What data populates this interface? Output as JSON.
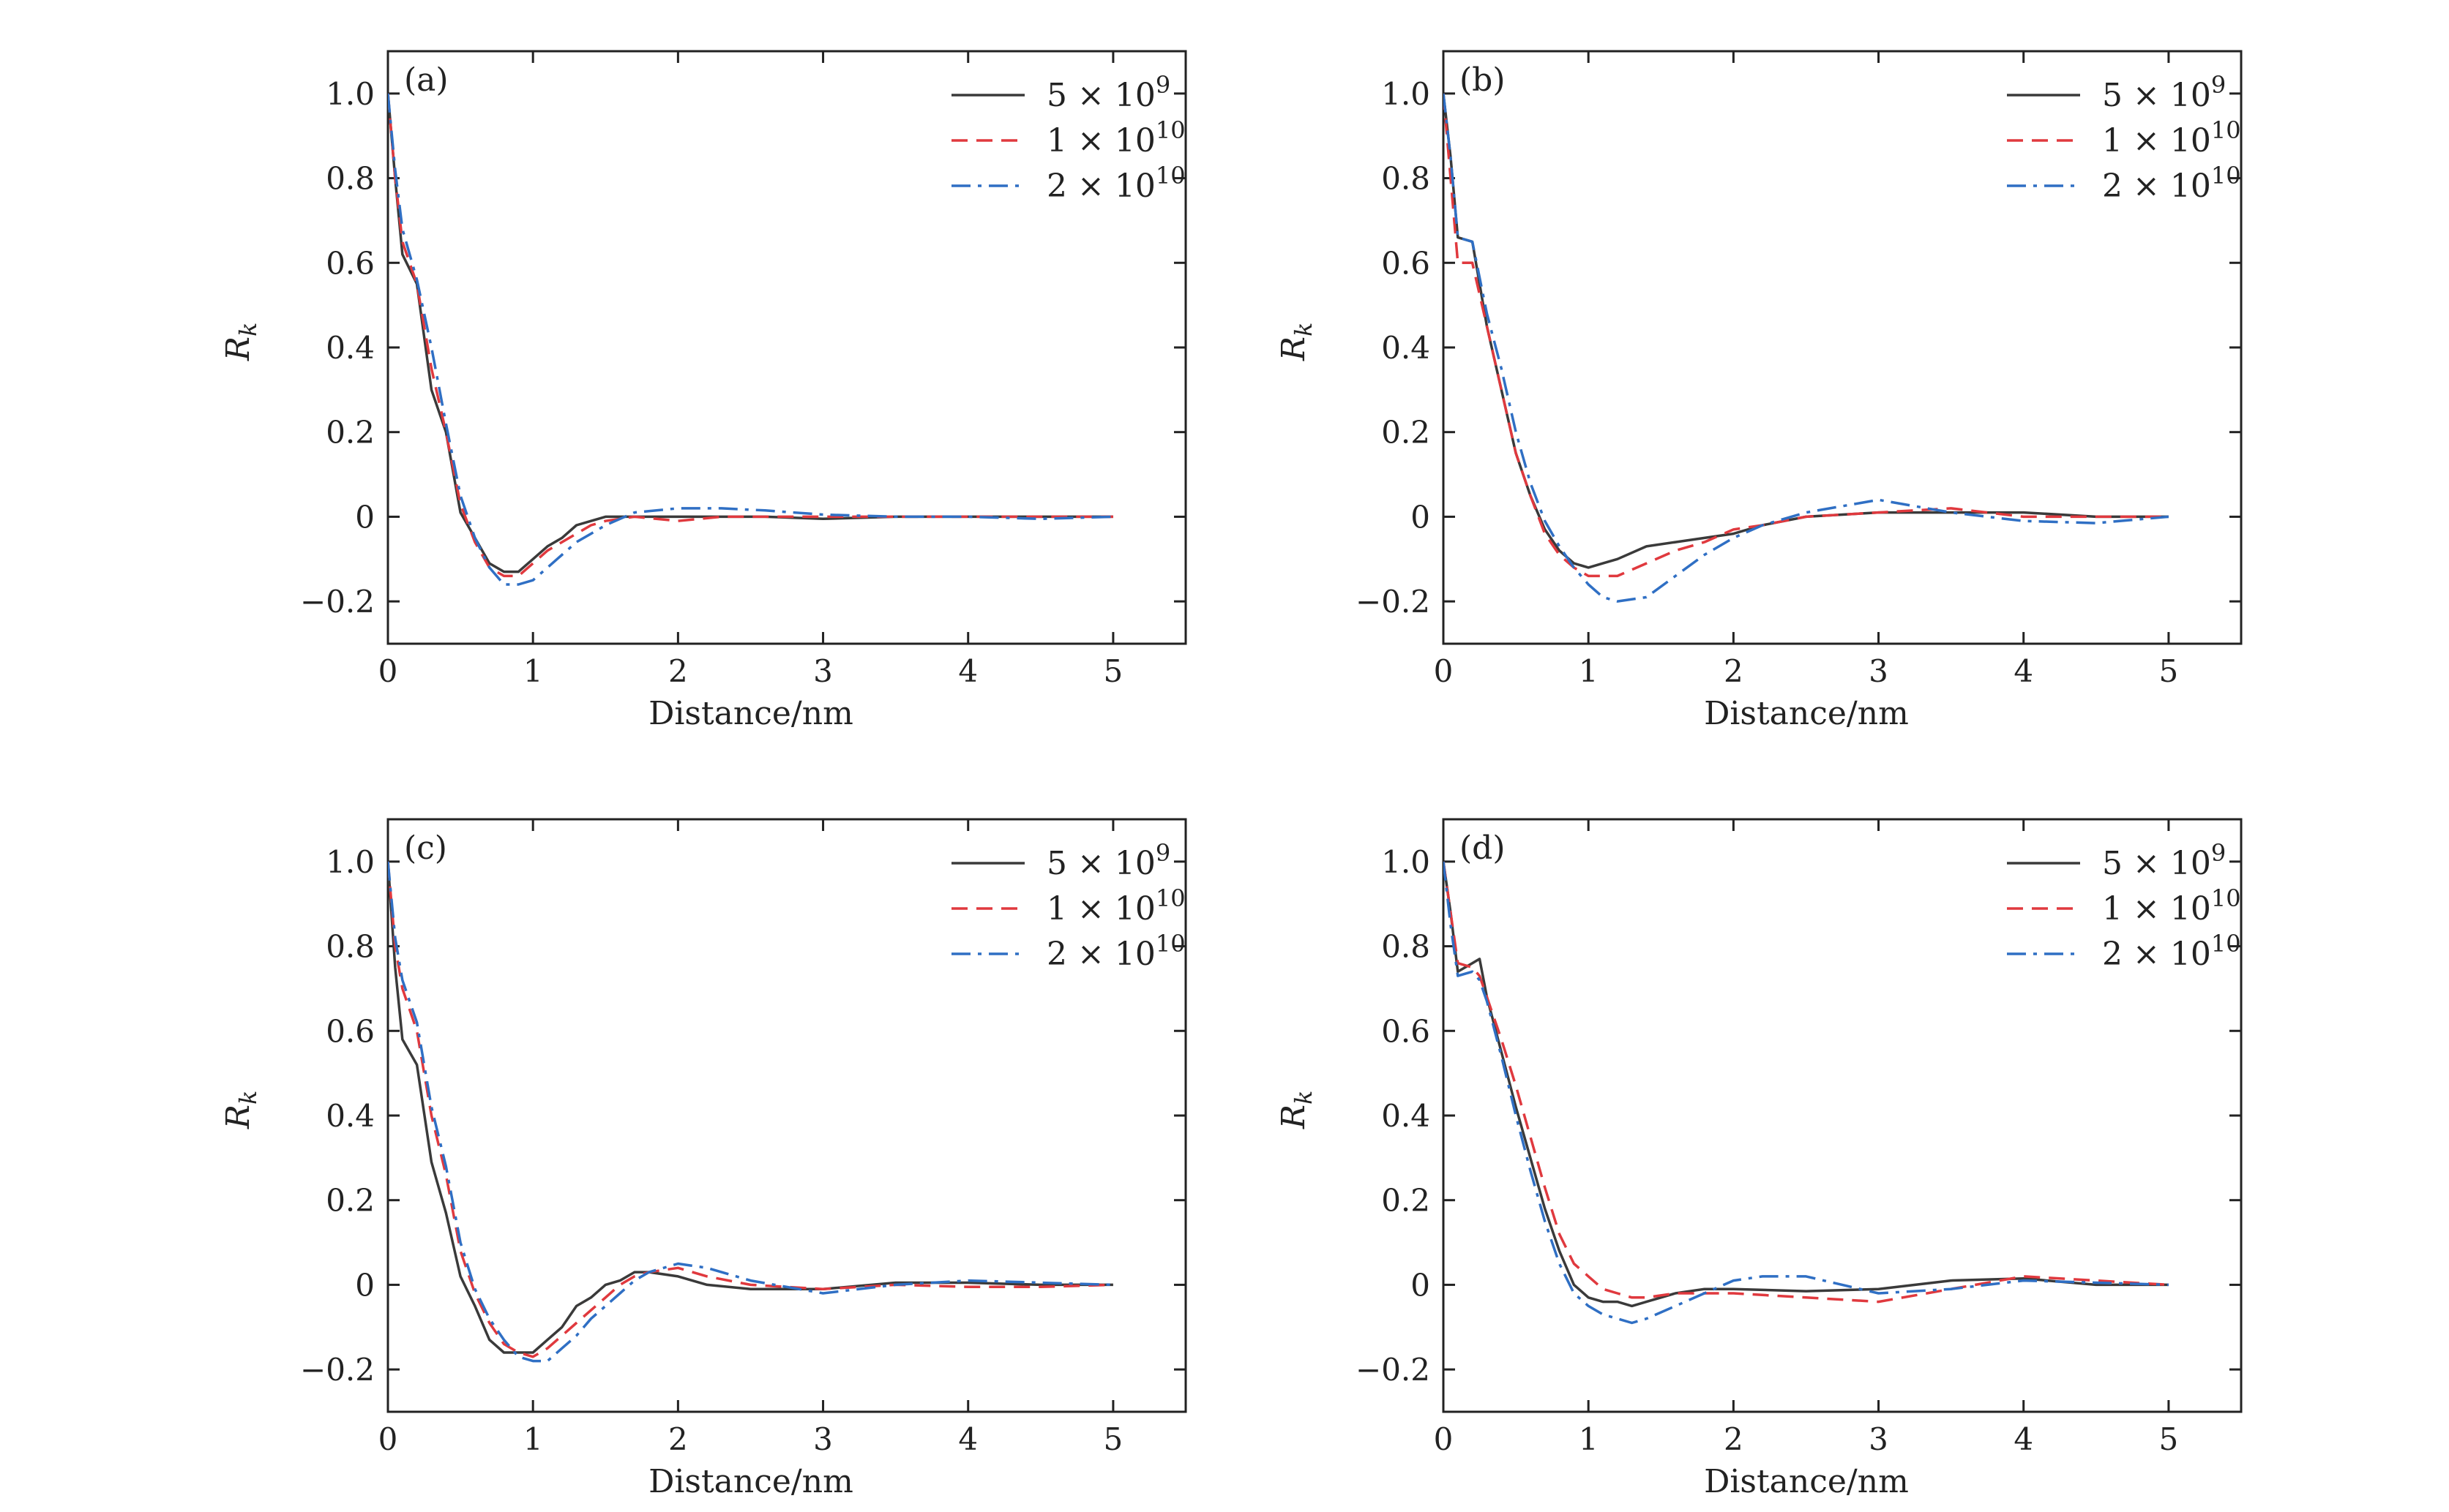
{
  "figure": {
    "columns": 2,
    "rows": 2
  },
  "legend_labels": [
    {
      "base": "5 × 10",
      "exp": "9"
    },
    {
      "base": "1 × 10",
      "exp": "10"
    },
    {
      "base": "2 × 10",
      "exp": "10"
    }
  ],
  "colors": {
    "s5e9": "#3a3a3a",
    "s1e10": "#e0393e",
    "s2e10": "#2f6fc4",
    "axis": "#222222"
  },
  "chart_data": [
    {
      "type": "line",
      "panel_label": "(a)",
      "xlabel": "Distance/nm",
      "ylabel": "R",
      "ylabel_sub": "k",
      "xlim": [
        0,
        5.5
      ],
      "ylim": [
        -0.3,
        1.1
      ],
      "xticks": [
        0,
        1,
        2,
        3,
        4,
        5
      ],
      "yticks": [
        -0.2,
        0,
        0.2,
        0.4,
        0.6,
        0.8,
        1.0
      ],
      "ytick_labels": [
        "−0.2",
        "0",
        "0.2",
        "0.4",
        "0.6",
        "0.8",
        "1.0"
      ],
      "legend_position": "top-right",
      "series": [
        {
          "name": "5×10^9",
          "color_key": "s5e9",
          "dash": "solid",
          "x": [
            0,
            0.05,
            0.1,
            0.2,
            0.3,
            0.4,
            0.5,
            0.6,
            0.7,
            0.8,
            0.9,
            1.0,
            1.1,
            1.2,
            1.3,
            1.4,
            1.5,
            1.7,
            2.0,
            2.3,
            2.6,
            3.0,
            3.5,
            4.0,
            4.5,
            5.0
          ],
          "y": [
            1.0,
            0.8,
            0.62,
            0.55,
            0.3,
            0.2,
            0.01,
            -0.05,
            -0.11,
            -0.13,
            -0.13,
            -0.1,
            -0.07,
            -0.05,
            -0.02,
            -0.01,
            0.0,
            0.0,
            0.0,
            0.0,
            0.0,
            -0.005,
            0.0,
            0.0,
            0.0,
            0.0
          ]
        },
        {
          "name": "1×10^10",
          "color_key": "s1e10",
          "dash": "dashed",
          "x": [
            0,
            0.05,
            0.1,
            0.2,
            0.3,
            0.4,
            0.5,
            0.6,
            0.7,
            0.8,
            0.9,
            1.0,
            1.1,
            1.2,
            1.3,
            1.4,
            1.5,
            1.7,
            2.0,
            2.3,
            2.6,
            3.0,
            3.5,
            4.0,
            4.5,
            5.0
          ],
          "y": [
            1.0,
            0.8,
            0.65,
            0.55,
            0.35,
            0.2,
            0.03,
            -0.06,
            -0.12,
            -0.14,
            -0.14,
            -0.11,
            -0.08,
            -0.06,
            -0.04,
            -0.02,
            -0.01,
            0.0,
            -0.01,
            0.0,
            0.0,
            0.0,
            0.0,
            0.0,
            0.0,
            0.0
          ]
        },
        {
          "name": "2×10^10",
          "color_key": "s2e10",
          "dash": "dashdot",
          "x": [
            0,
            0.05,
            0.1,
            0.2,
            0.3,
            0.4,
            0.5,
            0.6,
            0.7,
            0.8,
            0.9,
            1.0,
            1.1,
            1.2,
            1.3,
            1.4,
            1.5,
            1.7,
            2.0,
            2.3,
            2.6,
            3.0,
            3.5,
            4.0,
            4.5,
            5.0
          ],
          "y": [
            1.0,
            0.82,
            0.68,
            0.56,
            0.4,
            0.22,
            0.05,
            -0.05,
            -0.12,
            -0.16,
            -0.16,
            -0.15,
            -0.12,
            -0.09,
            -0.06,
            -0.04,
            -0.02,
            0.01,
            0.02,
            0.02,
            0.015,
            0.005,
            0.0,
            0.0,
            -0.005,
            0.0
          ]
        }
      ]
    },
    {
      "type": "line",
      "panel_label": "(b)",
      "xlabel": "Distance/nm",
      "ylabel": "R",
      "ylabel_sub": "k",
      "xlim": [
        0,
        5.5
      ],
      "ylim": [
        -0.3,
        1.1
      ],
      "xticks": [
        0,
        1,
        2,
        3,
        4,
        5
      ],
      "yticks": [
        -0.2,
        0,
        0.2,
        0.4,
        0.6,
        0.8,
        1.0
      ],
      "ytick_labels": [
        "−0.2",
        "0",
        "0.2",
        "0.4",
        "0.6",
        "0.8",
        "1.0"
      ],
      "legend_position": "top-right",
      "series": [
        {
          "name": "5×10^9",
          "color_key": "s5e9",
          "dash": "solid",
          "x": [
            0,
            0.05,
            0.1,
            0.2,
            0.3,
            0.4,
            0.5,
            0.6,
            0.7,
            0.8,
            0.9,
            1.0,
            1.1,
            1.2,
            1.4,
            1.6,
            1.8,
            2.0,
            2.2,
            2.5,
            3.0,
            3.5,
            4.0,
            4.5,
            5.0
          ],
          "y": [
            1.0,
            0.85,
            0.66,
            0.65,
            0.45,
            0.3,
            0.15,
            0.05,
            -0.03,
            -0.08,
            -0.11,
            -0.12,
            -0.11,
            -0.1,
            -0.07,
            -0.06,
            -0.05,
            -0.04,
            -0.02,
            0.0,
            0.01,
            0.01,
            0.01,
            0.0,
            0.0
          ]
        },
        {
          "name": "1×10^10",
          "color_key": "s1e10",
          "dash": "dashed",
          "x": [
            0,
            0.05,
            0.1,
            0.2,
            0.3,
            0.4,
            0.5,
            0.6,
            0.7,
            0.8,
            0.9,
            1.0,
            1.1,
            1.2,
            1.4,
            1.6,
            1.8,
            2.0,
            2.2,
            2.5,
            3.0,
            3.5,
            4.0,
            4.5,
            5.0
          ],
          "y": [
            1.0,
            0.8,
            0.6,
            0.6,
            0.45,
            0.3,
            0.15,
            0.05,
            -0.04,
            -0.09,
            -0.12,
            -0.14,
            -0.14,
            -0.14,
            -0.11,
            -0.08,
            -0.06,
            -0.03,
            -0.02,
            0.0,
            0.01,
            0.02,
            0.0,
            0.0,
            0.0
          ]
        },
        {
          "name": "2×10^10",
          "color_key": "s2e10",
          "dash": "dashdot",
          "x": [
            0,
            0.05,
            0.1,
            0.2,
            0.3,
            0.4,
            0.5,
            0.6,
            0.7,
            0.8,
            0.9,
            1.0,
            1.1,
            1.2,
            1.4,
            1.6,
            1.8,
            2.0,
            2.2,
            2.5,
            3.0,
            3.5,
            4.0,
            4.5,
            5.0
          ],
          "y": [
            1.0,
            0.85,
            0.66,
            0.65,
            0.48,
            0.35,
            0.2,
            0.08,
            -0.01,
            -0.07,
            -0.12,
            -0.16,
            -0.19,
            -0.2,
            -0.19,
            -0.14,
            -0.09,
            -0.05,
            -0.02,
            0.01,
            0.04,
            0.01,
            -0.01,
            -0.015,
            0.0
          ]
        }
      ]
    },
    {
      "type": "line",
      "panel_label": "(c)",
      "xlabel": "Distance/nm",
      "ylabel": "R",
      "ylabel_sub": "k",
      "xlim": [
        0,
        5.5
      ],
      "ylim": [
        -0.3,
        1.1
      ],
      "xticks": [
        0,
        1,
        2,
        3,
        4,
        5
      ],
      "yticks": [
        -0.2,
        0,
        0.2,
        0.4,
        0.6,
        0.8,
        1.0
      ],
      "ytick_labels": [
        "−0.2",
        "0",
        "0.2",
        "0.4",
        "0.6",
        "0.8",
        "1.0"
      ],
      "legend_position": "top-right",
      "series": [
        {
          "name": "5×10^9",
          "color_key": "s5e9",
          "dash": "solid",
          "x": [
            0,
            0.05,
            0.1,
            0.2,
            0.3,
            0.4,
            0.5,
            0.6,
            0.7,
            0.8,
            0.9,
            1.0,
            1.1,
            1.2,
            1.3,
            1.4,
            1.5,
            1.6,
            1.7,
            1.8,
            2.0,
            2.2,
            2.5,
            3.0,
            3.5,
            4.0,
            4.5,
            5.0
          ],
          "y": [
            1.0,
            0.75,
            0.58,
            0.52,
            0.29,
            0.17,
            0.02,
            -0.05,
            -0.13,
            -0.16,
            -0.16,
            -0.16,
            -0.13,
            -0.1,
            -0.05,
            -0.03,
            0.0,
            0.01,
            0.03,
            0.03,
            0.02,
            0.0,
            -0.01,
            -0.01,
            0.005,
            0.005,
            0.0,
            0.0
          ]
        },
        {
          "name": "1×10^10",
          "color_key": "s1e10",
          "dash": "dashed",
          "x": [
            0,
            0.05,
            0.1,
            0.2,
            0.3,
            0.4,
            0.5,
            0.6,
            0.7,
            0.8,
            0.9,
            1.0,
            1.1,
            1.2,
            1.3,
            1.4,
            1.5,
            1.6,
            1.7,
            1.8,
            2.0,
            2.2,
            2.5,
            3.0,
            3.5,
            4.0,
            4.5,
            5.0
          ],
          "y": [
            1.0,
            0.8,
            0.7,
            0.6,
            0.4,
            0.26,
            0.08,
            -0.02,
            -0.09,
            -0.14,
            -0.16,
            -0.17,
            -0.15,
            -0.12,
            -0.09,
            -0.06,
            -0.03,
            0.0,
            0.02,
            0.03,
            0.04,
            0.02,
            0.0,
            -0.01,
            0.0,
            -0.005,
            -0.005,
            0.0
          ]
        },
        {
          "name": "2×10^10",
          "color_key": "s2e10",
          "dash": "dashdot",
          "x": [
            0,
            0.05,
            0.1,
            0.2,
            0.3,
            0.4,
            0.5,
            0.6,
            0.7,
            0.8,
            0.9,
            1.0,
            1.1,
            1.2,
            1.3,
            1.4,
            1.5,
            1.6,
            1.7,
            1.8,
            2.0,
            2.2,
            2.5,
            3.0,
            3.5,
            4.0,
            4.5,
            5.0
          ],
          "y": [
            1.0,
            0.82,
            0.72,
            0.62,
            0.42,
            0.28,
            0.1,
            -0.01,
            -0.08,
            -0.13,
            -0.17,
            -0.18,
            -0.18,
            -0.15,
            -0.12,
            -0.08,
            -0.05,
            -0.02,
            0.01,
            0.03,
            0.05,
            0.04,
            0.01,
            -0.02,
            0.0,
            0.01,
            0.005,
            0.0
          ]
        }
      ]
    },
    {
      "type": "line",
      "panel_label": "(d)",
      "xlabel": "Distance/nm",
      "ylabel": "R",
      "ylabel_sub": "k",
      "xlim": [
        0,
        5.5
      ],
      "ylim": [
        -0.3,
        1.1
      ],
      "xticks": [
        0,
        1,
        2,
        3,
        4,
        5
      ],
      "yticks": [
        -0.2,
        0,
        0.2,
        0.4,
        0.6,
        0.8,
        1.0
      ],
      "ytick_labels": [
        "−0.2",
        "0",
        "0.2",
        "0.4",
        "0.6",
        "0.8",
        "1.0"
      ],
      "legend_position": "top-right",
      "series": [
        {
          "name": "5×10^9",
          "color_key": "s5e9",
          "dash": "solid",
          "x": [
            0,
            0.05,
            0.1,
            0.2,
            0.25,
            0.3,
            0.4,
            0.5,
            0.6,
            0.7,
            0.8,
            0.9,
            1.0,
            1.1,
            1.2,
            1.3,
            1.4,
            1.6,
            1.8,
            2.0,
            2.5,
            3.0,
            3.5,
            4.0,
            4.5,
            5.0
          ],
          "y": [
            1.0,
            0.88,
            0.74,
            0.76,
            0.77,
            0.68,
            0.55,
            0.42,
            0.3,
            0.18,
            0.08,
            0.0,
            -0.03,
            -0.04,
            -0.04,
            -0.05,
            -0.04,
            -0.02,
            -0.01,
            -0.01,
            -0.015,
            -0.01,
            0.01,
            0.015,
            0.0,
            0.0
          ]
        },
        {
          "name": "1×10^10",
          "color_key": "s1e10",
          "dash": "dashed",
          "x": [
            0,
            0.05,
            0.1,
            0.2,
            0.25,
            0.3,
            0.4,
            0.5,
            0.6,
            0.7,
            0.8,
            0.9,
            1.0,
            1.1,
            1.2,
            1.3,
            1.4,
            1.6,
            1.8,
            2.0,
            2.5,
            3.0,
            3.5,
            4.0,
            4.5,
            5.0
          ],
          "y": [
            1.0,
            0.88,
            0.76,
            0.75,
            0.73,
            0.68,
            0.58,
            0.47,
            0.35,
            0.23,
            0.12,
            0.05,
            0.02,
            -0.01,
            -0.02,
            -0.03,
            -0.03,
            -0.02,
            -0.02,
            -0.02,
            -0.03,
            -0.04,
            -0.01,
            0.02,
            0.01,
            0.0
          ]
        },
        {
          "name": "2×10^10",
          "color_key": "s2e10",
          "dash": "dashdot",
          "x": [
            0,
            0.05,
            0.1,
            0.2,
            0.25,
            0.3,
            0.4,
            0.5,
            0.6,
            0.7,
            0.8,
            0.9,
            1.0,
            1.1,
            1.2,
            1.3,
            1.4,
            1.6,
            1.8,
            2.0,
            2.2,
            2.5,
            3.0,
            3.5,
            4.0,
            4.5,
            5.0
          ],
          "y": [
            1.0,
            0.85,
            0.73,
            0.74,
            0.72,
            0.67,
            0.54,
            0.4,
            0.27,
            0.15,
            0.05,
            -0.02,
            -0.05,
            -0.07,
            -0.08,
            -0.09,
            -0.08,
            -0.05,
            -0.02,
            0.01,
            0.02,
            0.02,
            -0.02,
            -0.01,
            0.01,
            0.005,
            0.0
          ]
        }
      ]
    }
  ]
}
